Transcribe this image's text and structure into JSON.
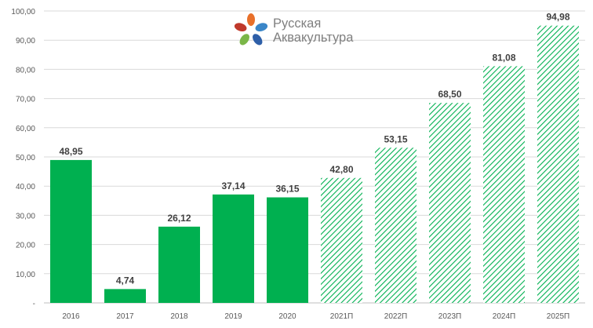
{
  "logo": {
    "line1": "Русская",
    "line2": "Аквакультура"
  },
  "chart_data": {
    "type": "bar",
    "categories": [
      "2016",
      "2017",
      "2018",
      "2019",
      "2020",
      "2021П",
      "2022П",
      "2023П",
      "2024П",
      "2025П"
    ],
    "values": [
      48.95,
      4.74,
      26.12,
      37.14,
      36.15,
      42.8,
      53.15,
      68.5,
      81.08,
      94.98
    ],
    "value_labels": [
      "48,95",
      "4,74",
      "26,12",
      "37,14",
      "36,15",
      "42,80",
      "53,15",
      "68,50",
      "81,08",
      "94,98"
    ],
    "forecast": [
      false,
      false,
      false,
      false,
      false,
      true,
      true,
      true,
      true,
      true
    ],
    "y_ticks": [
      "-",
      "10,00",
      "20,00",
      "30,00",
      "40,00",
      "50,00",
      "60,00",
      "70,00",
      "80,00",
      "90,00",
      "100,00"
    ],
    "ylim": [
      0,
      100
    ],
    "grid": true,
    "title": "",
    "xlabel": "",
    "ylabel": "",
    "colors": {
      "actual": "#00b050",
      "forecast_hatch": "#00b050",
      "grid": "#d9d9d9",
      "axis": "#bfbfbf"
    }
  }
}
